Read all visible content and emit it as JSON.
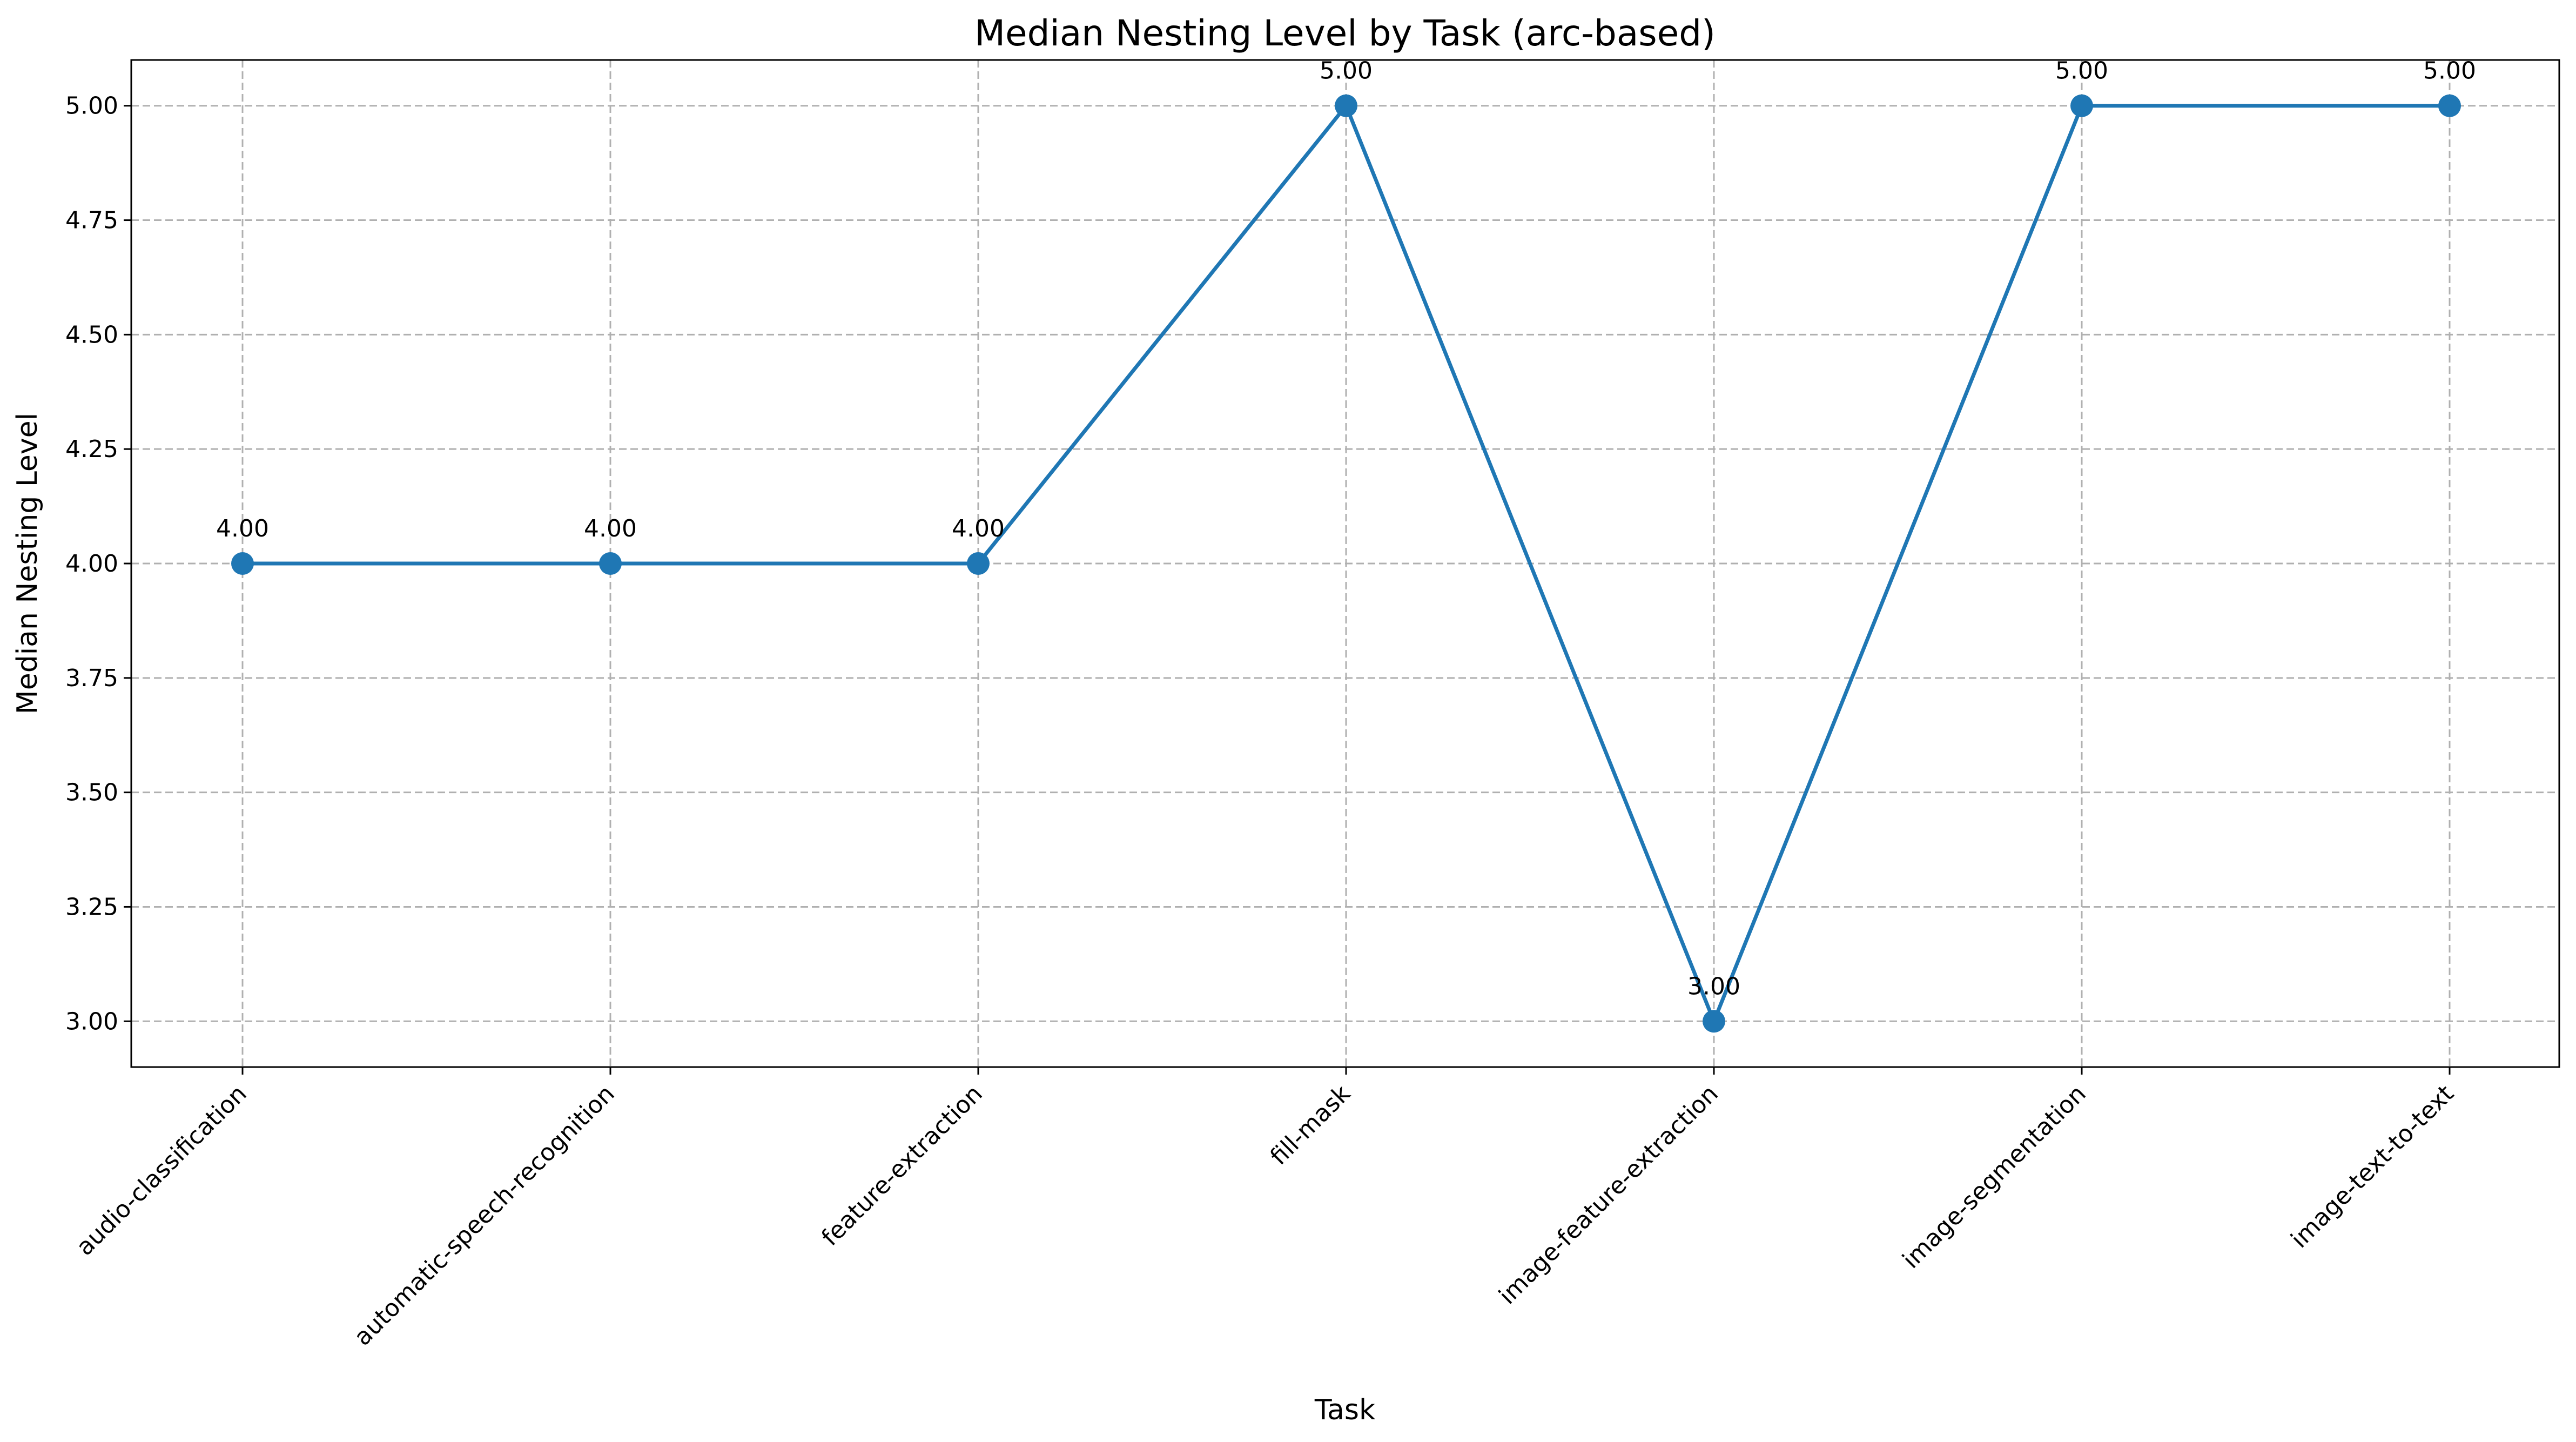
{
  "chart_data": {
    "type": "line",
    "title": "Median Nesting Level by Task (arc-based)",
    "xlabel": "Task",
    "ylabel": "Median Nesting Level",
    "categories": [
      "audio-classification",
      "automatic-speech-recognition",
      "feature-extraction",
      "fill-mask",
      "image-feature-extraction",
      "image-segmentation",
      "image-text-to-text"
    ],
    "values": [
      4.0,
      4.0,
      4.0,
      5.0,
      3.0,
      5.0,
      5.0
    ],
    "data_labels": [
      "4.00",
      "4.00",
      "4.00",
      "5.00",
      "3.00",
      "5.00",
      "5.00"
    ],
    "ylim": [
      2.9,
      5.1
    ],
    "yticks": [
      3.0,
      3.25,
      3.5,
      3.75,
      4.0,
      4.25,
      4.5,
      4.75,
      5.0
    ],
    "ytick_labels": [
      "3.00",
      "3.25",
      "3.50",
      "3.75",
      "4.00",
      "4.25",
      "4.50",
      "4.75",
      "5.00"
    ],
    "grid": true,
    "line_color": "#1f77b4",
    "marker": "circle"
  }
}
